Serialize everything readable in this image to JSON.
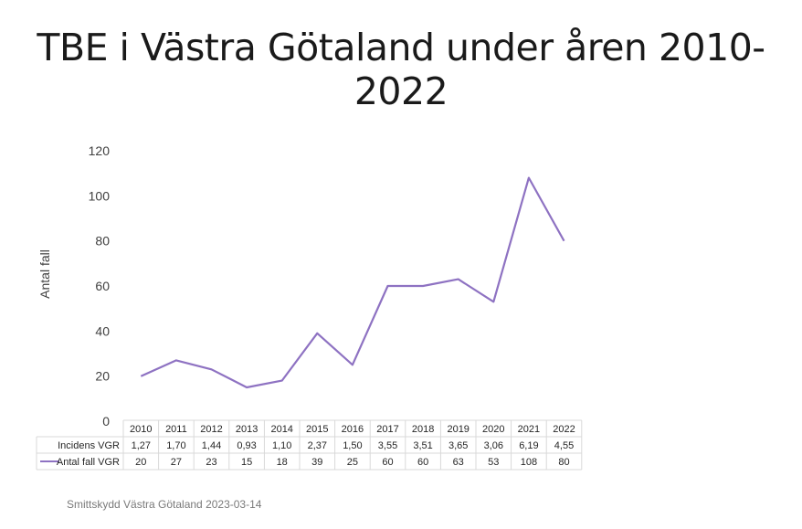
{
  "page": {
    "title": "TBE i Västra Götaland under åren 2010-2022",
    "footer": "Smittskydd Västra Götaland 2023-03-14"
  },
  "colors": {
    "line": "#8E72C2",
    "grid_border": "#D9D9D9",
    "text": "#404040"
  },
  "chart_data": {
    "type": "line",
    "title": "TBE i Västra Götaland under åren 2010-2022",
    "xlabel": "",
    "ylabel": "Antal fall",
    "ylim": [
      0,
      120
    ],
    "yticks": [
      0,
      20,
      40,
      60,
      80,
      100,
      120
    ],
    "grid": false,
    "categories": [
      "2010",
      "2011",
      "2012",
      "2013",
      "2014",
      "2015",
      "2016",
      "2017",
      "2018",
      "2019",
      "2020",
      "2021",
      "2022"
    ],
    "series": [
      {
        "name": "Antal fall VGR",
        "values": [
          20,
          27,
          23,
          15,
          18,
          39,
          25,
          60,
          60,
          63,
          53,
          108,
          80
        ],
        "labels": [
          "20",
          "27",
          "23",
          "15",
          "18",
          "39",
          "25",
          "60",
          "60",
          "63",
          "53",
          "108",
          "80"
        ],
        "plotted": true
      },
      {
        "name": "Incidens VGR",
        "labels": [
          "1,27",
          "1,70",
          "1,44",
          "0,93",
          "1,10",
          "2,37",
          "1,50",
          "3,55",
          "3,51",
          "3,65",
          "3,06",
          "6,19",
          "4,55"
        ],
        "plotted": false
      }
    ],
    "data_table": true,
    "legend": "data-table"
  }
}
